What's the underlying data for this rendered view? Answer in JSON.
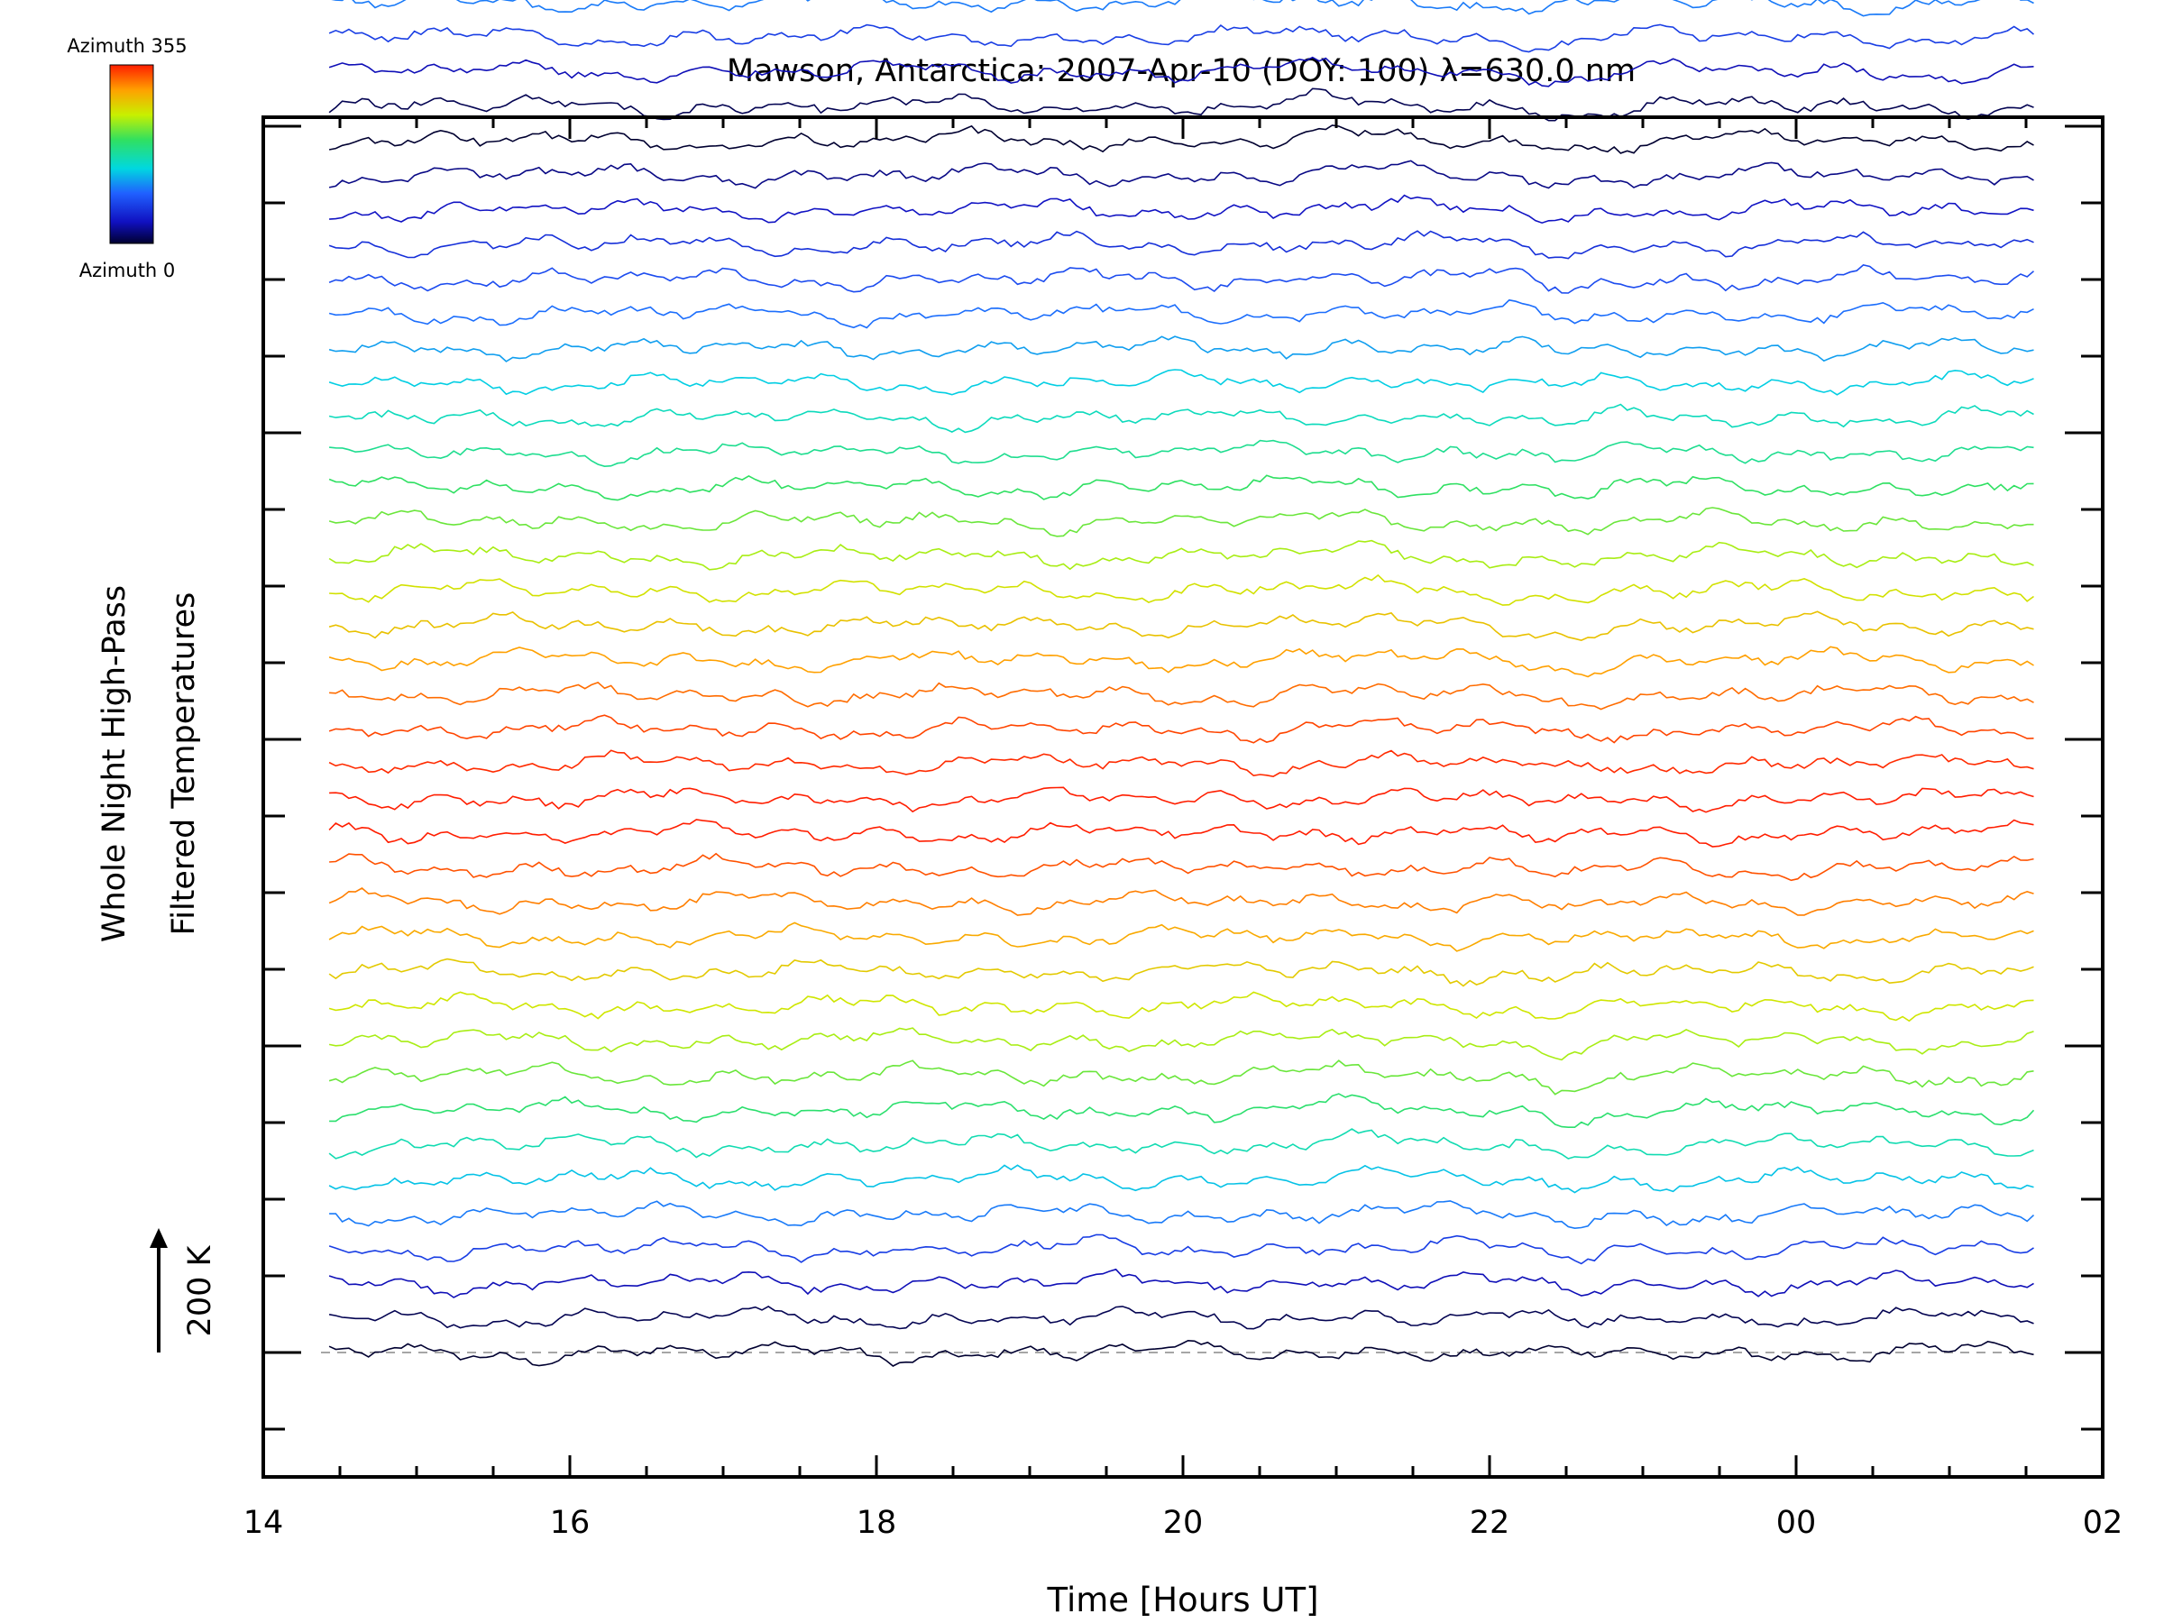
{
  "chart_data": {
    "type": "line",
    "title": "Mawson, Antarctica: 2007-Apr-10 (DOY: 100) λ=630.0 nm",
    "xlabel": "Time [Hours UT]",
    "ylabel_line1": "Whole Night High-Pass",
    "ylabel_line2": "Filtered Temperatures",
    "x_ticks": [
      "14",
      "16",
      "18",
      "20",
      "22",
      "00",
      "02"
    ],
    "x_tick_hours": [
      14,
      16,
      18,
      20,
      22,
      24,
      26
    ],
    "xlim": [
      14,
      26
    ],
    "data_x_range": [
      14.43,
      25.55
    ],
    "scale_bar_label": "200 K",
    "scale_bar_kelvin": 200,
    "colorbar": {
      "top_label": "Azimuth 355",
      "bottom_label": "Azimuth 0"
    },
    "series_count": 72,
    "series_spacing_K": 60,
    "baseline_dashed": true,
    "azimuth_cycle": [
      0,
      10,
      40,
      75,
      110,
      140,
      170,
      200,
      225,
      245,
      262,
      280,
      300,
      318,
      335,
      355,
      355,
      350,
      340,
      325,
      305,
      285,
      265,
      245,
      225,
      205,
      185,
      165,
      145,
      125,
      105,
      85,
      65,
      45,
      25
    ],
    "colors": {
      "axis": "#000000",
      "baseline": "#888888",
      "background": "#ffffff"
    }
  }
}
